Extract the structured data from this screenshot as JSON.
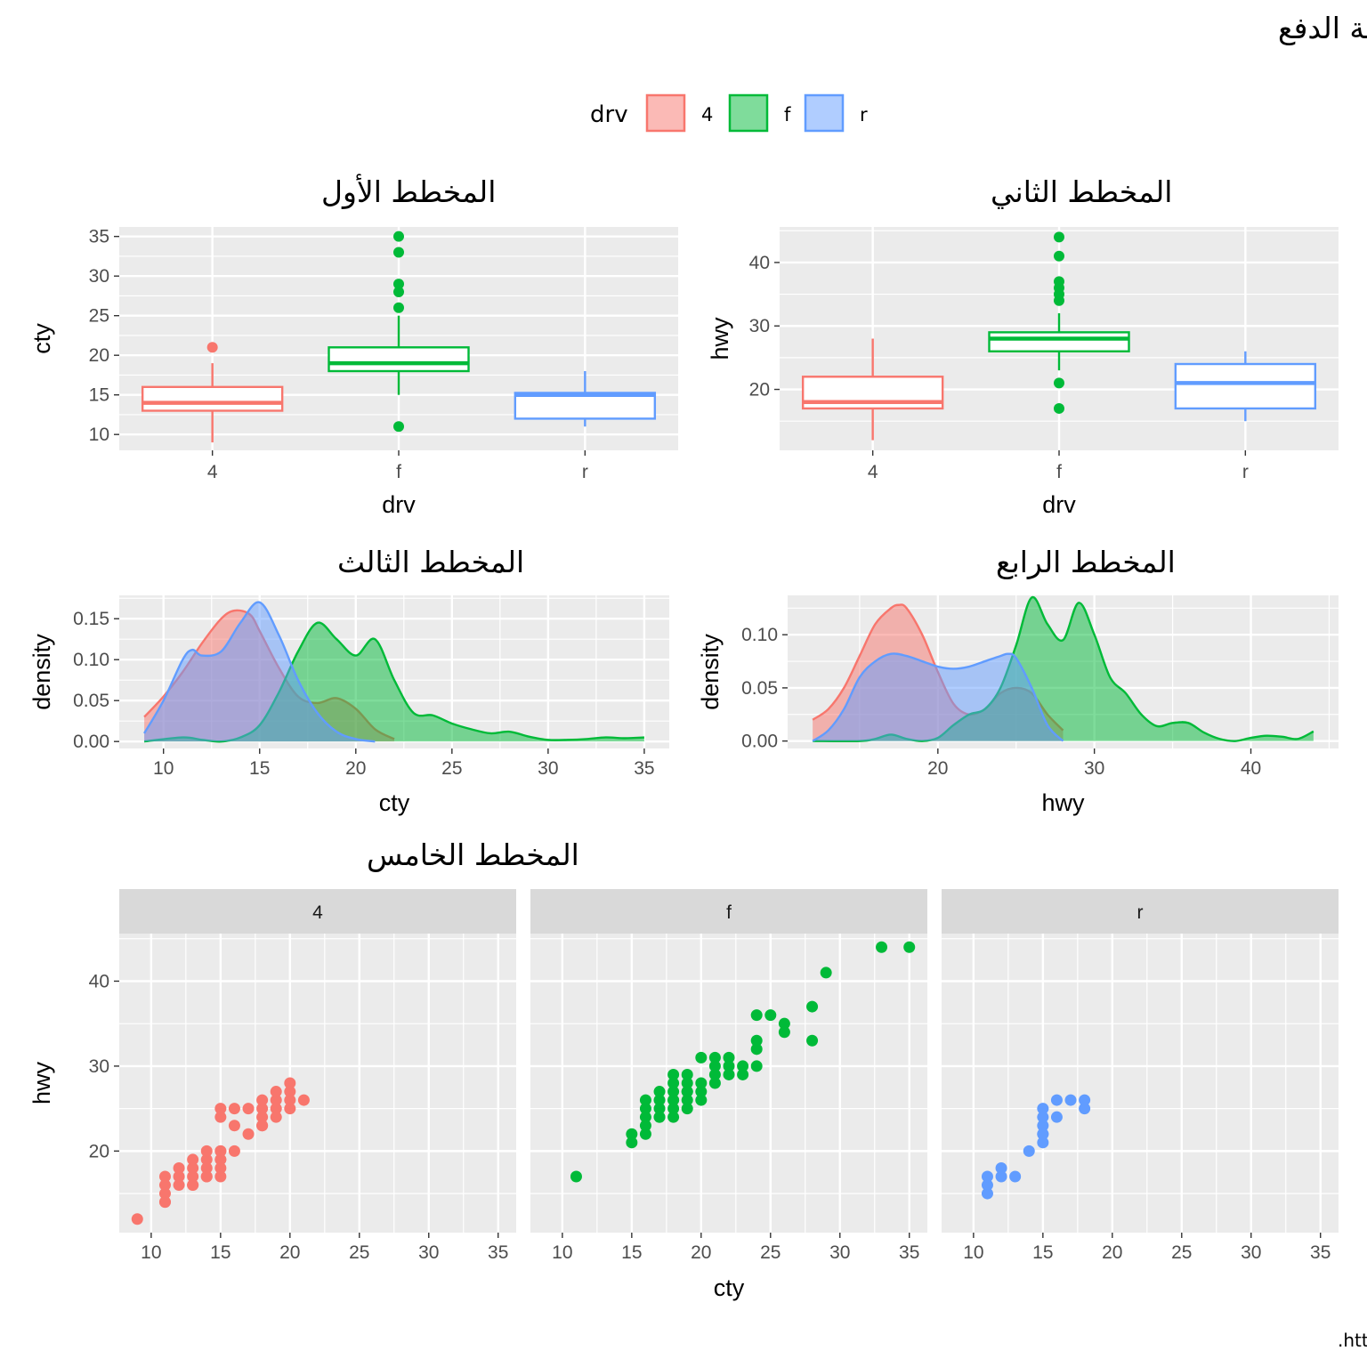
{
  "figure": {
    "title": "كفاءة استهلاك الوقود داخل المدينة وعلى الطرق السريعة للسيارات بمختلف أنظمة الدفع",
    "caption": "المصدر المرجعي للبيانات :https://fueleconomy.gov.",
    "legend": {
      "title": "drv",
      "position": "top",
      "items": [
        {
          "label": "4",
          "color": "#F8766D"
        },
        {
          "label": "f",
          "color": "#00BA38"
        },
        {
          "label": "r",
          "color": "#619CFF"
        }
      ]
    }
  },
  "chart_data": [
    {
      "type": "boxplot",
      "title": "المخطط الأول",
      "xlabel": "drv",
      "ylabel": "cty",
      "categories": [
        "4",
        "f",
        "r"
      ],
      "yticks": [
        "10",
        "15",
        "20",
        "25",
        "30",
        "35"
      ],
      "ylim": [
        8.0,
        36.2
      ],
      "boxes": [
        {
          "category": "4",
          "min": 9,
          "q1": 13,
          "median": 14,
          "q3": 16,
          "max": 19,
          "outliers": [
            21
          ]
        },
        {
          "category": "f",
          "min": 15,
          "q1": 18,
          "median": 19,
          "q3": 21,
          "max": 25,
          "outliers": [
            11,
            26,
            28,
            29,
            33,
            35
          ]
        },
        {
          "category": "r",
          "min": 11,
          "q1": 12,
          "median": 15,
          "q3": 15.25,
          "max": 18,
          "outliers": []
        }
      ]
    },
    {
      "type": "boxplot",
      "title": "المخطط الثاني",
      "xlabel": "drv",
      "ylabel": "hwy",
      "categories": [
        "4",
        "f",
        "r"
      ],
      "yticks": [
        "20",
        "30",
        "40"
      ],
      "ylim": [
        10.4,
        45.6
      ],
      "boxes": [
        {
          "category": "4",
          "min": 12,
          "q1": 17,
          "median": 18,
          "q3": 22,
          "max": 28,
          "outliers": []
        },
        {
          "category": "f",
          "min": 23,
          "q1": 26,
          "median": 28,
          "q3": 29,
          "max": 32,
          "outliers": [
            17,
            21,
            34,
            35,
            36,
            37,
            41,
            44
          ]
        },
        {
          "category": "r",
          "min": 15,
          "q1": 17,
          "median": 21,
          "q3": 24,
          "max": 26,
          "outliers": []
        }
      ]
    },
    {
      "type": "area",
      "title": "المخطط الثالث",
      "xlabel": "cty",
      "ylabel": "density",
      "xticks": [
        "10",
        "15",
        "20",
        "25",
        "30",
        "35"
      ],
      "yticks": [
        "0.00",
        "0.05",
        "0.10",
        "0.15"
      ],
      "xlim": [
        7.7,
        36.3
      ],
      "ylim": [
        -0.0085,
        0.1785
      ],
      "series": [
        {
          "name": "4",
          "x": [
            9,
            10,
            11,
            12,
            13,
            13.7,
            14.5,
            15,
            16,
            17,
            18,
            19,
            20,
            21,
            22
          ],
          "y": [
            0.03,
            0.055,
            0.085,
            0.12,
            0.15,
            0.16,
            0.155,
            0.135,
            0.09,
            0.055,
            0.047,
            0.053,
            0.04,
            0.015,
            0.003
          ]
        },
        {
          "name": "f",
          "x": [
            9,
            11,
            12,
            13,
            14,
            15,
            16,
            17,
            18,
            19,
            20,
            21,
            22,
            23,
            24,
            25,
            26,
            27,
            28,
            29,
            30,
            31,
            32,
            33,
            34,
            35
          ],
          "y": [
            0.0,
            0.005,
            0.002,
            0.0,
            0.005,
            0.02,
            0.06,
            0.11,
            0.145,
            0.125,
            0.105,
            0.125,
            0.075,
            0.035,
            0.032,
            0.022,
            0.015,
            0.01,
            0.012,
            0.006,
            0.002,
            0.002,
            0.003,
            0.005,
            0.004,
            0.005
          ]
        },
        {
          "name": "r",
          "x": [
            9,
            10,
            11,
            11.5,
            12,
            13,
            14,
            15,
            16,
            17,
            18,
            19,
            20,
            21
          ],
          "y": [
            0.01,
            0.05,
            0.1,
            0.112,
            0.105,
            0.11,
            0.145,
            0.17,
            0.13,
            0.075,
            0.035,
            0.012,
            0.003,
            0.0
          ]
        }
      ]
    },
    {
      "type": "area",
      "title": "المخطط الرابع",
      "xlabel": "hwy",
      "ylabel": "density",
      "xticks": [
        "20",
        "30",
        "40"
      ],
      "yticks": [
        "0.00",
        "0.05",
        "0.10"
      ],
      "xlim": [
        10.4,
        45.6
      ],
      "ylim": [
        -0.007,
        0.137
      ],
      "series": [
        {
          "name": "4",
          "x": [
            12,
            13,
            14,
            15,
            16,
            17,
            17.5,
            18,
            19,
            20,
            21,
            22,
            23,
            24,
            25,
            26,
            27,
            28
          ],
          "y": [
            0.02,
            0.03,
            0.05,
            0.08,
            0.11,
            0.125,
            0.128,
            0.125,
            0.1,
            0.065,
            0.035,
            0.025,
            0.03,
            0.045,
            0.05,
            0.045,
            0.025,
            0.01
          ]
        },
        {
          "name": "f",
          "x": [
            12,
            15,
            16,
            17,
            18,
            19,
            20,
            21,
            22,
            23,
            24,
            25,
            26,
            27,
            28,
            29,
            30,
            31,
            32,
            33,
            34,
            35,
            36,
            37,
            38,
            39,
            40,
            41,
            42,
            43,
            44
          ],
          "y": [
            0.0,
            0.0,
            0.002,
            0.006,
            0.002,
            0.0,
            0.003,
            0.015,
            0.025,
            0.03,
            0.05,
            0.09,
            0.135,
            0.11,
            0.095,
            0.13,
            0.1,
            0.06,
            0.045,
            0.025,
            0.014,
            0.017,
            0.017,
            0.008,
            0.002,
            0.0,
            0.003,
            0.005,
            0.004,
            0.002,
            0.009
          ]
        },
        {
          "name": "r",
          "x": [
            12,
            13,
            14,
            15,
            16,
            17,
            18,
            19,
            20,
            21,
            22,
            23,
            24,
            24.5,
            25,
            26,
            27,
            28
          ],
          "y": [
            0.0,
            0.01,
            0.03,
            0.06,
            0.075,
            0.082,
            0.08,
            0.075,
            0.07,
            0.068,
            0.07,
            0.075,
            0.08,
            0.082,
            0.078,
            0.05,
            0.015,
            0.0
          ]
        }
      ]
    },
    {
      "type": "scatter",
      "title": "المخطط الخامس",
      "xlabel": "cty",
      "ylabel": "hwy",
      "facets": [
        "4",
        "f",
        "r"
      ],
      "xticks": [
        "10",
        "15",
        "20",
        "25",
        "30",
        "35"
      ],
      "yticks": [
        "20",
        "30",
        "40"
      ],
      "xlim": [
        7.7,
        36.3
      ],
      "ylim": [
        10.4,
        45.6
      ],
      "series": [
        {
          "name": "4",
          "x": [
            9,
            11,
            11,
            11,
            11,
            11,
            12,
            12,
            12,
            13,
            13,
            13,
            13,
            13,
            14,
            14,
            14,
            14,
            14,
            15,
            15,
            15,
            15,
            15,
            15,
            15,
            15,
            16,
            16,
            16,
            17,
            17,
            18,
            18,
            18,
            18,
            18,
            19,
            19,
            19,
            19,
            20,
            20,
            20,
            20,
            21
          ],
          "y": [
            12,
            14,
            15,
            16,
            17,
            14,
            16,
            17,
            18,
            16,
            17,
            18,
            19,
            16,
            17,
            18,
            19,
            20,
            17,
            17,
            18,
            19,
            20,
            24,
            25,
            20,
            19,
            20,
            23,
            25,
            22,
            25,
            23,
            24,
            25,
            26,
            23,
            25,
            26,
            27,
            24,
            25,
            26,
            27,
            28,
            26
          ]
        },
        {
          "name": "f",
          "x": [
            11,
            15,
            15,
            16,
            16,
            16,
            16,
            16,
            17,
            17,
            17,
            17,
            17,
            18,
            18,
            18,
            18,
            18,
            18,
            18,
            19,
            19,
            19,
            19,
            19,
            19,
            20,
            20,
            20,
            20,
            21,
            21,
            21,
            21,
            22,
            22,
            22,
            23,
            23,
            24,
            24,
            24,
            24,
            25,
            26,
            26,
            28,
            28,
            29,
            33,
            35
          ],
          "y": [
            17,
            21,
            22,
            23,
            24,
            25,
            26,
            22,
            24,
            25,
            26,
            27,
            24,
            25,
            26,
            27,
            28,
            29,
            26,
            24,
            25,
            26,
            27,
            28,
            29,
            27,
            26,
            27,
            28,
            31,
            29,
            30,
            31,
            28,
            29,
            30,
            31,
            30,
            29,
            32,
            33,
            36,
            30,
            36,
            34,
            35,
            33,
            37,
            41,
            44,
            44
          ]
        },
        {
          "name": "r",
          "x": [
            11,
            11,
            11,
            12,
            12,
            13,
            14,
            15,
            15,
            15,
            15,
            15,
            15,
            16,
            16,
            17,
            18,
            18
          ],
          "y": [
            15,
            16,
            17,
            17,
            18,
            17,
            20,
            21,
            22,
            23,
            24,
            25,
            22,
            24,
            26,
            26,
            25,
            26
          ]
        }
      ]
    }
  ]
}
